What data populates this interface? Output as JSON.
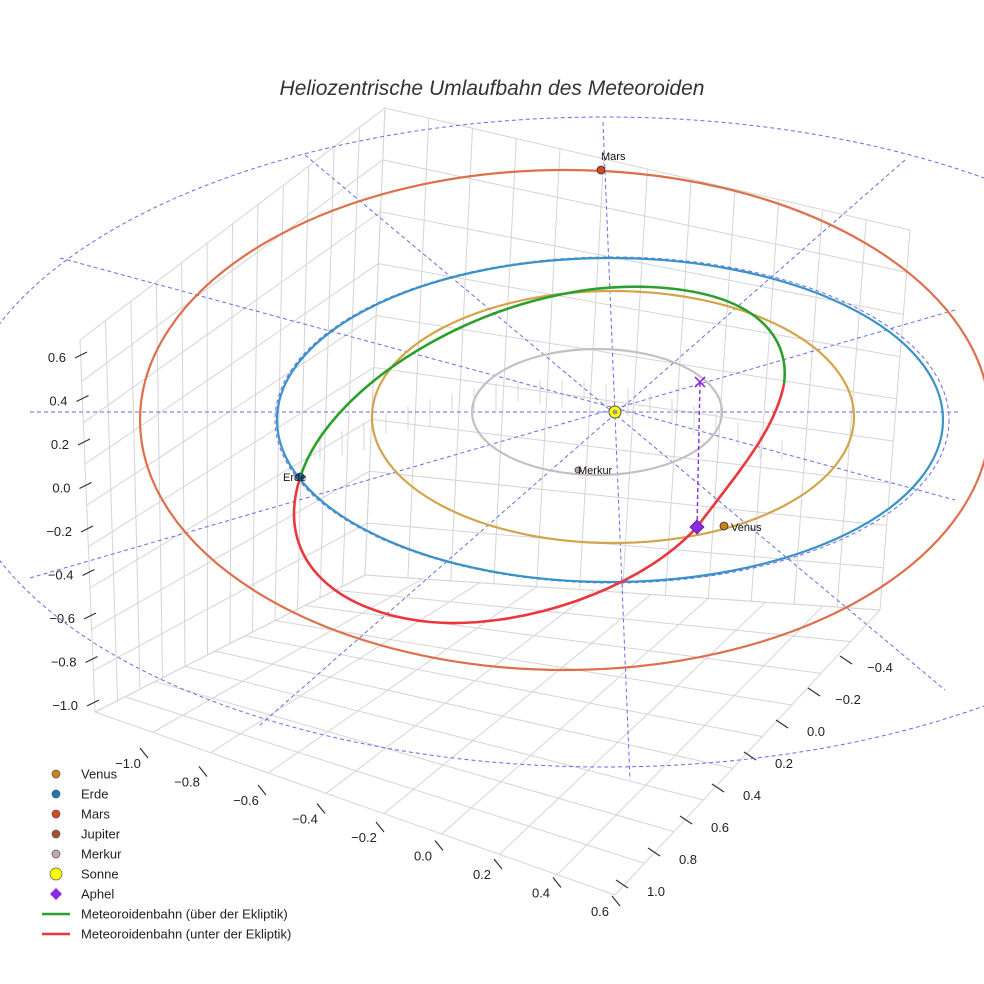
{
  "chart_data": {
    "type": "3d-line",
    "title": "Heliozentrische Umlaufbahn des Meteoroiden",
    "projection": "perspective-3d",
    "grid": true,
    "legend_position": "bottom-left",
    "x_ticks": [
      "−1.0",
      "−0.8",
      "−0.6",
      "−0.4",
      "−0.2",
      "0.0",
      "0.2",
      "0.4",
      "0.6"
    ],
    "y_ticks": [
      "−0.4",
      "−0.2",
      "0.0",
      "0.2",
      "0.4",
      "0.6",
      "0.8",
      "1.0"
    ],
    "z_ticks": [
      "0.6",
      "0.4",
      "0.2",
      "0.0",
      "−0.2",
      "−0.4",
      "−0.6",
      "−0.8",
      "−1.0"
    ],
    "planets": [
      {
        "name": "Venus",
        "label": "Venus",
        "color": "#c8841a",
        "orbit_color": "#d4a34a",
        "semi_major_axis_au": 0.72
      },
      {
        "name": "Erde",
        "label": "Erde",
        "color": "#1f77b4",
        "orbit_color": "#3a93c8",
        "semi_major_axis_au": 1.0
      },
      {
        "name": "Mars",
        "label": "Mars",
        "color": "#d64a1e",
        "orbit_color": "#df6f4a",
        "semi_major_axis_au": 1.52
      },
      {
        "name": "Jupiter",
        "label": "",
        "color": "#a0522d",
        "orbit_color": "#a0522d",
        "semi_major_axis_au": 5.2
      },
      {
        "name": "Merkur",
        "label": "Merkur",
        "color": "#c0aaa8",
        "orbit_color": "#c4c0c0",
        "semi_major_axis_au": 0.39
      },
      {
        "name": "Sonne",
        "label": "",
        "color": "#ffff00",
        "semi_major_axis_au": 0
      }
    ],
    "aphel": {
      "name": "Aphel",
      "color": "#8a2be2"
    },
    "series": [
      {
        "name": "Meteoroidenbahn (über der Ekliptik)",
        "color": "#2ca02c"
      },
      {
        "name": "Meteoroidenbahn (unter der Ekliptik)",
        "color": "#e8383d"
      }
    ],
    "legend": [
      {
        "label": "Venus",
        "marker": "circle",
        "color": "#c8841a"
      },
      {
        "label": "Erde",
        "marker": "circle",
        "color": "#1f77b4"
      },
      {
        "label": "Mars",
        "marker": "circle",
        "color": "#d64a1e"
      },
      {
        "label": "Jupiter",
        "marker": "circle",
        "color": "#a0522d"
      },
      {
        "label": "Merkur",
        "marker": "circle",
        "color": "#c0aaa8"
      },
      {
        "label": "Sonne",
        "marker": "circle-large",
        "color": "#ffff00"
      },
      {
        "label": "Aphel",
        "marker": "diamond",
        "color": "#8a2be2"
      },
      {
        "label": "Meteoroidenbahn (über der Ekliptik)",
        "marker": "line",
        "color": "#2ca02c"
      },
      {
        "label": "Meteoroidenbahn (unter der Ekliptik)",
        "marker": "line",
        "color": "#e8383d"
      }
    ]
  }
}
